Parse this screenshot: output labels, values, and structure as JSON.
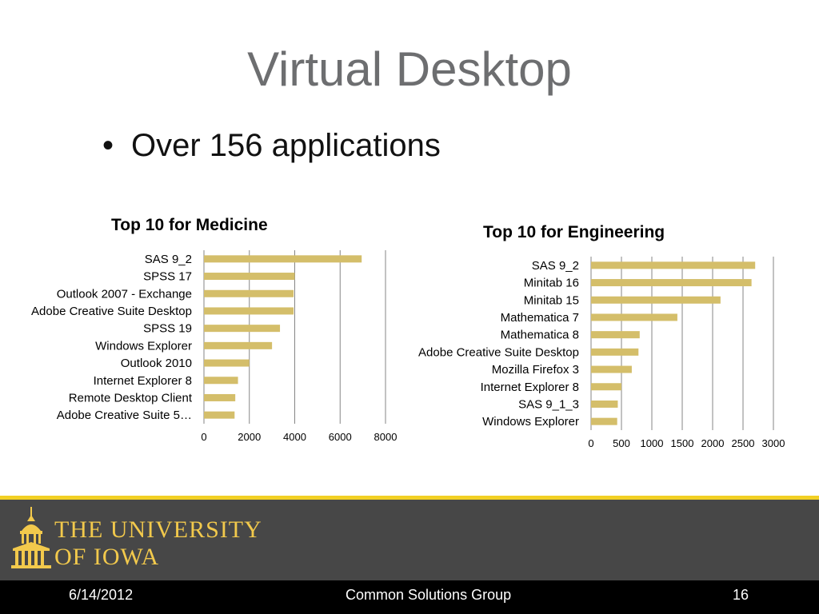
{
  "slide": {
    "title": "Virtual Desktop",
    "bullet": "Over 156 applications"
  },
  "colors": {
    "bar": "#d4be6a",
    "grid": "#868686",
    "footer_band": "#474747",
    "gold": "#f2d024",
    "bottom_band": "#000000"
  },
  "chart_data": [
    {
      "type": "bar",
      "orientation": "horizontal",
      "title": "Top 10 for Medicine",
      "categories": [
        "SAS 9_2",
        "SPSS 17",
        "Outlook 2007 - Exchange",
        "Adobe Creative Suite Desktop",
        "SPSS 19",
        "Windows Explorer",
        "Outlook 2010",
        "Internet Explorer 8",
        "Remote Desktop Client",
        "Adobe Creative Suite 5…"
      ],
      "values": [
        6950,
        4000,
        3950,
        3950,
        3350,
        3000,
        2000,
        1500,
        1380,
        1350
      ],
      "xlim": [
        0,
        8000
      ],
      "xticks": [
        "0",
        "2000",
        "4000",
        "6000",
        "8000"
      ],
      "grid": true,
      "legend": "none"
    },
    {
      "type": "bar",
      "orientation": "horizontal",
      "title": "Top 10 for Engineering",
      "categories": [
        "SAS 9_2",
        "Minitab 16",
        "Minitab 15",
        "Mathematica 7",
        "Mathematica 8",
        "Adobe Creative Suite Desktop",
        "Mozilla Firefox 3",
        "Internet Explorer 8",
        "SAS 9_1_3",
        "Windows Explorer"
      ],
      "values": [
        2700,
        2640,
        2130,
        1420,
        800,
        780,
        670,
        500,
        440,
        430
      ],
      "xlim": [
        0,
        3000
      ],
      "xticks": [
        "0",
        "500",
        "1000",
        "1500",
        "2000",
        "2500",
        "3000"
      ],
      "grid": true,
      "legend": "none"
    }
  ],
  "logo": {
    "line1": "THE UNIVERSITY",
    "line2": "OF IOWA"
  },
  "footer": {
    "date": "6/14/2012",
    "center": "Common Solutions Group",
    "page": "16"
  }
}
